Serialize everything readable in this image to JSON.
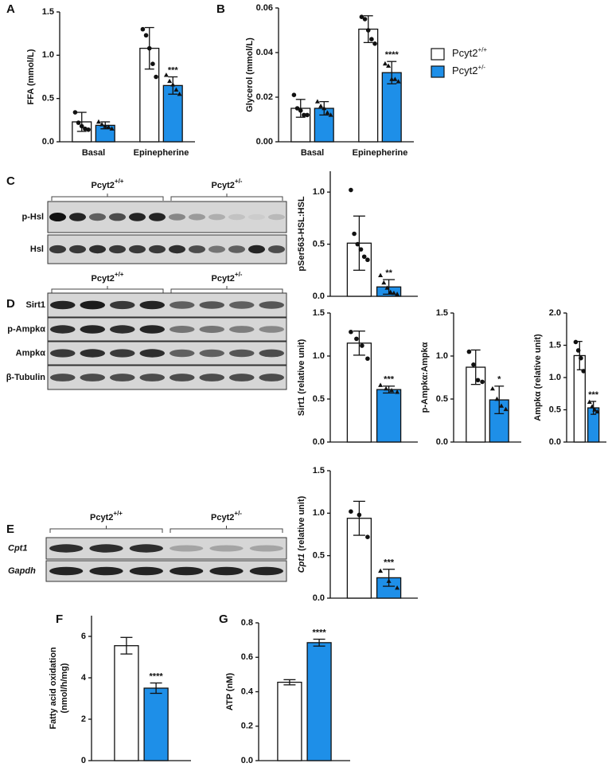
{
  "chart_data": [
    {
      "type": "bar",
      "letter": "A",
      "ylabel": "FFA (mmol/L)",
      "categories": [
        "Basal",
        "Epinepherine"
      ],
      "ylim": [
        0,
        1.5
      ],
      "yticks": [
        {
          "value": 0,
          "label": "0.0"
        },
        {
          "value": 0.5,
          "label": "0.5"
        },
        {
          "value": 1,
          "label": "1.0"
        },
        {
          "value": 1.5,
          "label": "1.5"
        }
      ],
      "series": [
        {
          "color": "#ffffff",
          "values": [
            0.23,
            1.08
          ],
          "errors": [
            0.11,
            0.24
          ],
          "points": [
            [
              0.34,
              0.22,
              0.18,
              0.15,
              0.14
            ],
            [
              1.3,
              1.23,
              1.08,
              0.9,
              0.75
            ]
          ]
        },
        {
          "color": "#1e8fe8",
          "values": [
            0.19,
            0.65
          ],
          "errors": [
            0.04,
            0.1
          ],
          "points": [
            [
              0.23,
              0.2,
              0.18,
              0.17,
              0.15
            ],
            [
              0.77,
              0.7,
              0.66,
              0.6,
              0.55
            ]
          ],
          "sig": [
            null,
            "***"
          ]
        }
      ]
    },
    {
      "type": "bar",
      "letter": "B",
      "ylabel": "Glycerol (mmol/L)",
      "categories": [
        "Basal",
        "Epinepherine"
      ],
      "legend": "right",
      "ylim": [
        0,
        0.06
      ],
      "yticks": [
        {
          "value": 0,
          "label": "0.00"
        },
        {
          "value": 0.02,
          "label": "0.02"
        },
        {
          "value": 0.04,
          "label": "0.04"
        },
        {
          "value": 0.06,
          "label": "0.06"
        }
      ],
      "series": [
        {
          "name": {
            "base": "Pcyt2",
            "sup": "+/+"
          },
          "color": "#ffffff",
          "values": [
            0.015,
            0.0505
          ],
          "errors": [
            0.004,
            0.006
          ],
          "points": [
            [
              0.021,
              0.015,
              0.014,
              0.012,
              0.012
            ],
            [
              0.056,
              0.055,
              0.05,
              0.046,
              0.044
            ]
          ]
        },
        {
          "name": {
            "base": "Pcyt2",
            "sup": "+/-"
          },
          "color": "#1e8fe8",
          "values": [
            0.015,
            0.031
          ],
          "errors": [
            0.003,
            0.005
          ],
          "points": [
            [
              0.018,
              0.016,
              0.015,
              0.013,
              0.012
            ],
            [
              0.035,
              0.034,
              0.028,
              0.028,
              0.027
            ]
          ],
          "sig": [
            null,
            "****"
          ]
        }
      ]
    },
    {
      "type": "bar",
      "ylabel": "pSer563-HSL:HSL",
      "categories": [
        null
      ],
      "ylim": [
        0,
        1.2
      ],
      "yticks": [
        {
          "value": 0,
          "label": "0.0"
        },
        {
          "value": 0.5,
          "label": "0.5"
        },
        {
          "value": 1,
          "label": "1.0"
        }
      ],
      "series": [
        {
          "color": "#ffffff",
          "values": [
            0.51
          ],
          "errors": [
            0.26
          ],
          "points": [
            [
              1.02,
              0.6,
              0.5,
              0.45,
              0.38,
              0.35
            ]
          ]
        },
        {
          "color": "#1e8fe8",
          "values": [
            0.09
          ],
          "errors": [
            0.07
          ],
          "points": [
            [
              0.2,
              0.13,
              0.08,
              0.04,
              0.03,
              0.02
            ]
          ],
          "sig": [
            "**"
          ]
        }
      ]
    },
    {
      "type": "bar",
      "ylabel": "Sirt1 (relative unit)",
      "categories": [
        null
      ],
      "ylim": [
        0,
        1.5
      ],
      "yticks": [
        {
          "value": 0,
          "label": "0.0"
        },
        {
          "value": 0.5,
          "label": "0.5"
        },
        {
          "value": 1,
          "label": "1.0"
        },
        {
          "value": 1.5,
          "label": "1.5"
        }
      ],
      "series": [
        {
          "color": "#ffffff",
          "values": [
            1.15
          ],
          "errors": [
            0.14
          ],
          "points": [
            [
              1.28,
              1.2,
              1.12,
              0.97
            ]
          ]
        },
        {
          "color": "#1e8fe8",
          "values": [
            0.61
          ],
          "errors": [
            0.04
          ],
          "points": [
            [
              0.66,
              0.62,
              0.6,
              0.58
            ]
          ],
          "sig": [
            "***"
          ]
        }
      ]
    },
    {
      "type": "bar",
      "ylabel": "p-Ampkα:Ampkα",
      "categories": [
        null
      ],
      "ylim": [
        0,
        1.5
      ],
      "yticks": [
        {
          "value": 0,
          "label": "0.0"
        },
        {
          "value": 0.5,
          "label": "0.5"
        },
        {
          "value": 1,
          "label": "1.0"
        },
        {
          "value": 1.5,
          "label": "1.5"
        }
      ],
      "series": [
        {
          "color": "#ffffff",
          "values": [
            0.87
          ],
          "errors": [
            0.2
          ],
          "points": [
            [
              1.05,
              0.9,
              0.72,
              0.7
            ]
          ]
        },
        {
          "color": "#1e8fe8",
          "values": [
            0.49
          ],
          "errors": [
            0.16
          ],
          "points": [
            [
              0.62,
              0.5,
              0.42,
              0.38
            ]
          ],
          "sig": [
            "*"
          ]
        }
      ]
    },
    {
      "type": "bar",
      "ylabel": "Ampkα (relative unit)",
      "categories": [
        null
      ],
      "ylim": [
        0,
        2
      ],
      "yticks": [
        {
          "value": 0,
          "label": "0.0"
        },
        {
          "value": 0.5,
          "label": "0.5"
        },
        {
          "value": 1,
          "label": "1.0"
        },
        {
          "value": 1.5,
          "label": "1.5"
        },
        {
          "value": 2,
          "label": "2.0"
        }
      ],
      "series": [
        {
          "color": "#ffffff",
          "values": [
            1.34
          ],
          "errors": [
            0.22
          ],
          "points": [
            [
              1.55,
              1.42,
              1.3,
              1.1
            ]
          ]
        },
        {
          "color": "#1e8fe8",
          "values": [
            0.53
          ],
          "errors": [
            0.1
          ],
          "points": [
            [
              0.62,
              0.55,
              0.5,
              0.47
            ]
          ],
          "sig": [
            "***"
          ]
        }
      ]
    },
    {
      "type": "bar",
      "ylabel_prefix": "Cpt1",
      "ylabel": " (relative unit)",
      "categories": [
        null
      ],
      "ylim": [
        0,
        1.5
      ],
      "yticks": [
        {
          "value": 0,
          "label": "0.0"
        },
        {
          "value": 0.5,
          "label": "0.5"
        },
        {
          "value": 1,
          "label": "1.0"
        },
        {
          "value": 1.5,
          "label": "1.5"
        }
      ],
      "series": [
        {
          "color": "#ffffff",
          "values": [
            0.94
          ],
          "errors": [
            0.2
          ],
          "points": [
            [
              1.02,
              0.98,
              0.72
            ]
          ]
        },
        {
          "color": "#1e8fe8",
          "values": [
            0.24
          ],
          "errors": [
            0.1
          ],
          "points": [
            [
              0.32,
              0.2,
              0.12
            ]
          ],
          "sig": [
            "***"
          ]
        }
      ]
    },
    {
      "type": "bar",
      "letter": "F",
      "ylabel": [
        "Fatty acid oxidation",
        "(nmol/h/mg)"
      ],
      "categories": [
        null
      ],
      "ylim": [
        0,
        7
      ],
      "yticks": [
        0,
        2,
        4,
        6
      ],
      "series": [
        {
          "color": "#ffffff",
          "values": [
            5.55
          ],
          "errors": [
            0.4
          ]
        },
        {
          "color": "#1e8fe8",
          "values": [
            3.5
          ],
          "errors": [
            0.25
          ],
          "sig": [
            "****"
          ]
        }
      ]
    },
    {
      "type": "bar",
      "letter": "G",
      "ylabel": "ATP (nM)",
      "categories": [
        null
      ],
      "ylim": [
        0,
        0.8
      ],
      "yticks": [
        {
          "value": 0,
          "label": "0.0"
        },
        {
          "value": 0.2,
          "label": "0.2"
        },
        {
          "value": 0.4,
          "label": "0.4"
        },
        {
          "value": 0.6,
          "label": "0.6"
        },
        {
          "value": 0.8,
          "label": "0.8"
        }
      ],
      "series": [
        {
          "color": "#ffffff",
          "values": [
            0.455
          ],
          "errors": [
            0.015
          ]
        },
        {
          "color": "#1e8fe8",
          "values": [
            0.685
          ],
          "errors": [
            0.02
          ],
          "sig": [
            "****"
          ]
        }
      ]
    }
  ],
  "blots": [
    {
      "letter": "C",
      "groups": [
        {
          "base": "Pcyt2",
          "sup": "+/+"
        },
        {
          "base": "Pcyt2",
          "sup": "+/-"
        }
      ],
      "rows": [
        "p-Hsl",
        "Hsl"
      ]
    },
    {
      "letter": "D",
      "groups": [
        {
          "base": "Pcyt2",
          "sup": "+/+"
        },
        {
          "base": "Pcyt2",
          "sup": "+/-"
        }
      ],
      "rows": [
        "Sirt1",
        "p-Ampkα",
        "Ampkα",
        "β-Tubulin"
      ]
    },
    {
      "letter": "E",
      "groups": [
        {
          "base": "Pcyt2",
          "sup": "+/+"
        },
        {
          "base": "Pcyt2",
          "sup": "+/-"
        }
      ],
      "rows": [
        "Cpt1",
        "Gapdh"
      ],
      "italic_rows": true
    }
  ]
}
